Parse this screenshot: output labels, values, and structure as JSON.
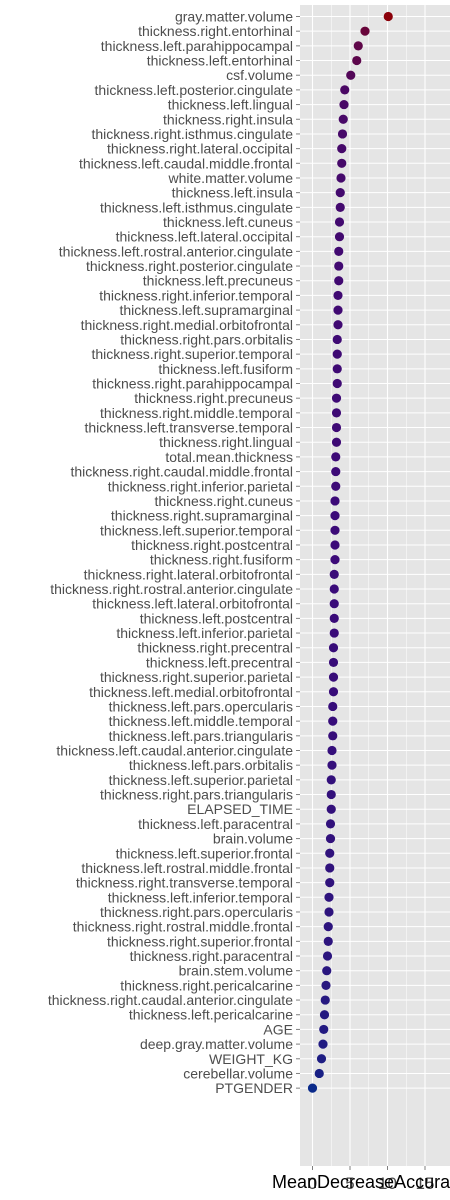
{
  "chart_data": {
    "type": "scatter",
    "title": "",
    "xlabel": "MeanDecreaseAccuracy",
    "ylabel": "",
    "xlim": [
      -1.5,
      17
    ],
    "x_ticks": [
      "0",
      "5",
      "10",
      "15"
    ],
    "grid": true,
    "legend": "none",
    "colors": {
      "panel_bg": "#e5e5e5",
      "grid": "#ffffff",
      "low": "#0a2a8a",
      "high": "#8b0000"
    },
    "categories": [
      "gray.matter.volume",
      "thickness.right.entorhinal",
      "thickness.left.parahippocampal",
      "thickness.left.entorhinal",
      "csf.volume",
      "thickness.left.posterior.cingulate",
      "thickness.left.lingual",
      "thickness.right.insula",
      "thickness.right.isthmus.cingulate",
      "thickness.right.lateral.occipital",
      "thickness.left.caudal.middle.frontal",
      "white.matter.volume",
      "thickness.left.insula",
      "thickness.left.isthmus.cingulate",
      "thickness.left.cuneus",
      "thickness.left.lateral.occipital",
      "thickness.left.rostral.anterior.cingulate",
      "thickness.right.posterior.cingulate",
      "thickness.left.precuneus",
      "thickness.right.inferior.temporal",
      "thickness.left.supramarginal",
      "thickness.right.medial.orbitofrontal",
      "thickness.right.pars.orbitalis",
      "thickness.right.superior.temporal",
      "thickness.left.fusiform",
      "thickness.right.parahippocampal",
      "thickness.right.precuneus",
      "thickness.right.middle.temporal",
      "thickness.left.transverse.temporal",
      "thickness.right.lingual",
      "total.mean.thickness",
      "thickness.right.caudal.middle.frontal",
      "thickness.right.inferior.parietal",
      "thickness.right.cuneus",
      "thickness.right.supramarginal",
      "thickness.left.superior.temporal",
      "thickness.right.postcentral",
      "thickness.right.fusiform",
      "thickness.right.lateral.orbitofrontal",
      "thickness.right.rostral.anterior.cingulate",
      "thickness.left.lateral.orbitofrontal",
      "thickness.left.postcentral",
      "thickness.left.inferior.parietal",
      "thickness.right.precentral",
      "thickness.left.precentral",
      "thickness.right.superior.parietal",
      "thickness.left.medial.orbitofrontal",
      "thickness.left.pars.opercularis",
      "thickness.left.middle.temporal",
      "thickness.left.pars.triangularis",
      "thickness.left.caudal.anterior.cingulate",
      "thickness.left.pars.orbitalis",
      "thickness.left.superior.parietal",
      "thickness.right.pars.triangularis",
      "ELAPSED_TIME",
      "thickness.left.paracentral",
      "brain.volume",
      "thickness.left.superior.frontal",
      "thickness.left.rostral.middle.frontal",
      "thickness.right.transverse.temporal",
      "thickness.left.inferior.temporal",
      "thickness.right.pars.opercularis",
      "thickness.right.rostral.middle.frontal",
      "thickness.right.superior.frontal",
      "thickness.right.paracentral",
      "brain.stem.volume",
      "thickness.right.pericalcarine",
      "thickness.right.caudal.anterior.cingulate",
      "thickness.left.pericalcarine",
      "AGE",
      "deep.gray.matter.volume",
      "WEIGHT_KG",
      "cerebellar.volume",
      "PTGENDER"
    ],
    "values": [
      10.1,
      7.0,
      6.1,
      5.9,
      5.1,
      4.3,
      4.2,
      4.1,
      4.0,
      3.9,
      3.9,
      3.8,
      3.7,
      3.7,
      3.6,
      3.6,
      3.5,
      3.5,
      3.5,
      3.4,
      3.4,
      3.4,
      3.3,
      3.3,
      3.3,
      3.3,
      3.2,
      3.2,
      3.2,
      3.2,
      3.1,
      3.1,
      3.1,
      3.0,
      3.0,
      3.0,
      3.0,
      3.0,
      2.9,
      2.9,
      2.9,
      2.9,
      2.9,
      2.8,
      2.8,
      2.8,
      2.8,
      2.7,
      2.7,
      2.7,
      2.6,
      2.6,
      2.5,
      2.5,
      2.5,
      2.4,
      2.4,
      2.3,
      2.3,
      2.3,
      2.2,
      2.2,
      2.1,
      2.1,
      2.0,
      1.9,
      1.8,
      1.7,
      1.6,
      1.5,
      1.4,
      1.2,
      0.9,
      0.0
    ]
  }
}
